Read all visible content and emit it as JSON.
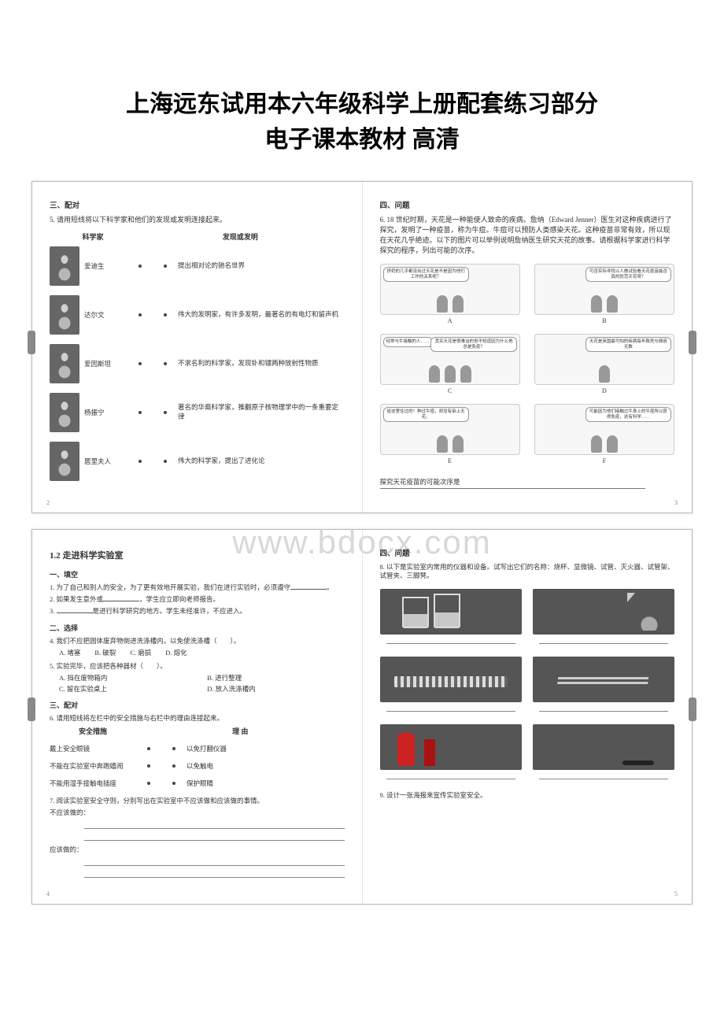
{
  "title_line1": "上海远东试用本六年级科学上册配套练习部分",
  "title_line2": "电子课本教材 高清",
  "watermark": "www.bdocx.com",
  "spread1": {
    "left_pn": "2",
    "right_pn": "3",
    "sec3": "三、配对",
    "q5": "5. 请用短线将以下科学家和他们的发现或发明连接起来。",
    "col_scientist": "科学家",
    "col_disc": "发现或发明",
    "rows": [
      {
        "name": "爱迪生",
        "desc": "提出相对论的驰名世界"
      },
      {
        "name": "达尔文",
        "desc": "伟大的发明家，有许多发明，最著名的有电灯和留声机"
      },
      {
        "name": "爱因斯坦",
        "desc": "不求名利的科学家，发现钋和镭两种放射性物质"
      },
      {
        "name": "杨振宁",
        "desc": "著名的华裔科学家，推翻原子核物理学中的一条重要定律"
      },
      {
        "name": "居里夫人",
        "desc": "伟大的科学家，提出了进化论"
      }
    ],
    "sec4": "四、问题",
    "q6": "6.  18 世纪时期，天花是一种能使人致命的疾病。詹纳（Edward Jenner）医生对这种疾病进行了探究，发明了一种疫苗，称为牛痘。牛痘可以预防人类感染天花。这种疫苗非常有效，所以现在天花几乎绝迹。以下的图片可以举例说明詹纳医生研究天花的故事。请根据科学家进行科学探究的程序，列出可能的次序。",
    "cartoons": {
      "A": {
        "b1": "挤奶的几乎都没出过天花是不是因为他们工作的关系呢？",
        "b2": ""
      },
      "B": {
        "b1": "可否实际寻找以人做试验看天花痘苗能否真的防范天花呀？",
        "b2": ""
      },
      "C": {
        "b1": "经常与牛接触的人……",
        "b2": "其实天花是很难治的但不知道因为什么他总是免疫？"
      },
      "D": {
        "b1": "天花是英国最可怕的疾病每年致死与毁容无数",
        "b2": ""
      },
      "E": {
        "b1": "给这里住过的！种过牛痘，却没有染上天花。",
        "b2": ""
      },
      "F": {
        "b1": "可能因为他们接触过牛身上的牛痘所以获得免疫，这有科学……",
        "b2": ""
      }
    },
    "conclusion_label": "探究天花疫苗的可能次序是"
  },
  "spread2": {
    "left_pn": "4",
    "right_pn": "5",
    "unit": "1.2  走进科学实验室",
    "sec1": "一、填空",
    "q1": "1. 为了自己和别人的安全，为了更有效地开展实验，我们在进行实验时，必须遵守",
    "q2_a": "2. 如果发生意外或",
    "q2_b": "，学生应立即向老师报告。",
    "q3_a": "3. ",
    "q3_b": "是进行科学研究的地方。学生未经准许，不应进入。",
    "sec2": "二、选择",
    "q4": "4. 我们不应把固体废弃物倒进洗涤槽内，以免使洗涤槽（　　）。",
    "q4opts": {
      "A": "A. 堵塞",
      "B": "B. 破裂",
      "C": "C. 磨损",
      "D": "D. 熔化"
    },
    "q5s": "5. 实验完毕，应该把各种器材（　　）。",
    "q5opts": {
      "A": "A. 挡在废物箱内",
      "B": "B. 进行整理",
      "C": "C. 留在实验桌上",
      "D": "D. 放入洗涤槽内"
    },
    "sec3b": "三、配对",
    "q6b": "6. 请用短线将左栏中的安全措施与右栏中的理由连接起来。",
    "safety_h1": "安全措施",
    "safety_h2": "理  由",
    "safety": [
      {
        "l": "戴上安全眼镜",
        "r": "以免打翻仪器"
      },
      {
        "l": "不能在实验室中奔跑嬉闹",
        "r": "以免触电"
      },
      {
        "l": "不能用湿手接触电插座",
        "r": "保护眼睛"
      }
    ],
    "q7": "7. 阅读实验室安全守则，分别写出在实验室中不应该做和应该做的事情。",
    "q7a": "不应该做的：",
    "q7b": "应该做的：",
    "sec4b": "四、问题",
    "q8": "8. 以下是实验室内常用的仪器和设备。试写出它们的名称：烧杯、显微镜、试管、灭火器、试管架、试管夹、三脚凳。",
    "q9": "9. 设计一张海报来宣传实验室安全。"
  }
}
